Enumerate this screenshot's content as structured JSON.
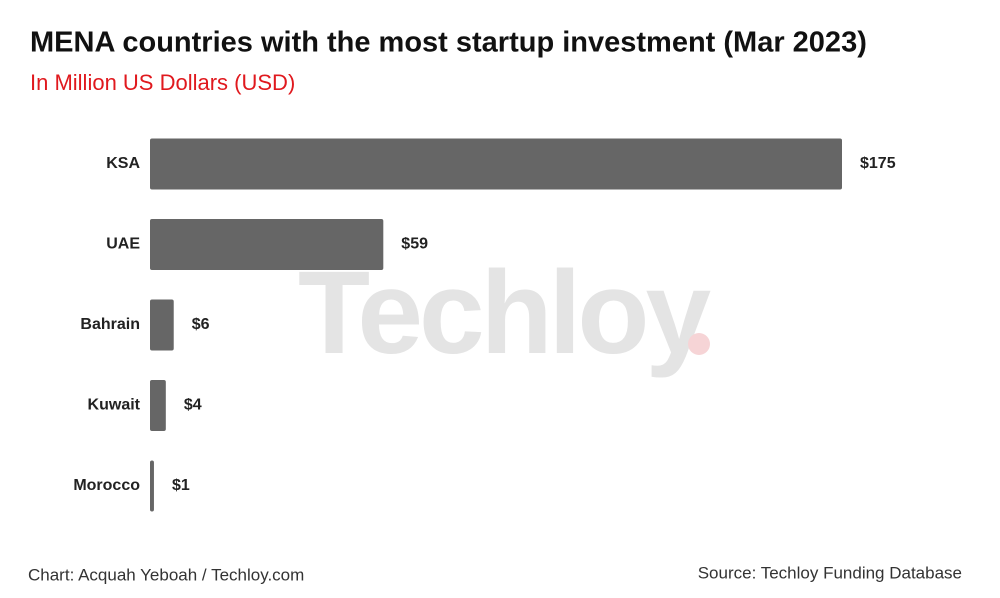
{
  "chart_data": {
    "type": "hbar",
    "title": "MENA countries with the most startup investment (Mar 2023)",
    "subtitle": "In Million US Dollars (USD)",
    "categories": [
      "KSA",
      "UAE",
      "Bahrain",
      "Kuwait",
      "Morocco"
    ],
    "values": [
      175,
      59,
      6,
      4,
      1
    ],
    "value_labels": [
      "$175",
      "$59",
      "$6",
      "$4",
      "$1"
    ],
    "color": "#666666",
    "watermark": "Techloy",
    "credit": "Chart: Acquah Yeboah / Techloy.com",
    "source": "Source: Techloy Funding Database"
  }
}
